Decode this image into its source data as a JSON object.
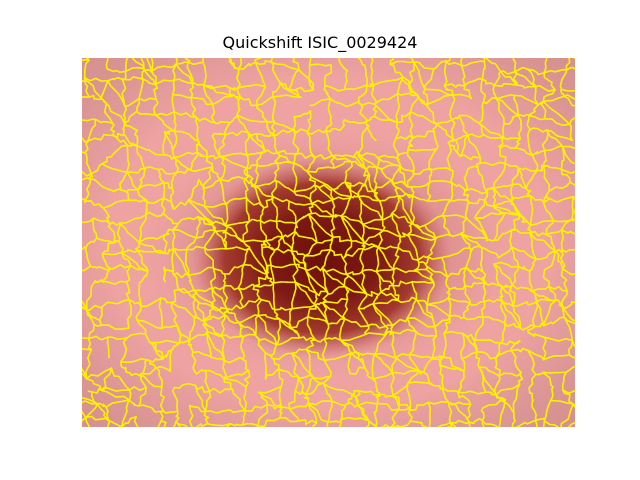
{
  "figure": {
    "title": "Quickshift ISIC_0029424"
  },
  "image": {
    "content": "dermoscopy image of a pigmented skin lesion with quickshift superpixel boundaries",
    "colors": {
      "skin": "#EEA2A2",
      "lesion_edge": "#B5483F",
      "lesion_core": "#6E0F0C",
      "boundaries": "#FFF200"
    }
  }
}
